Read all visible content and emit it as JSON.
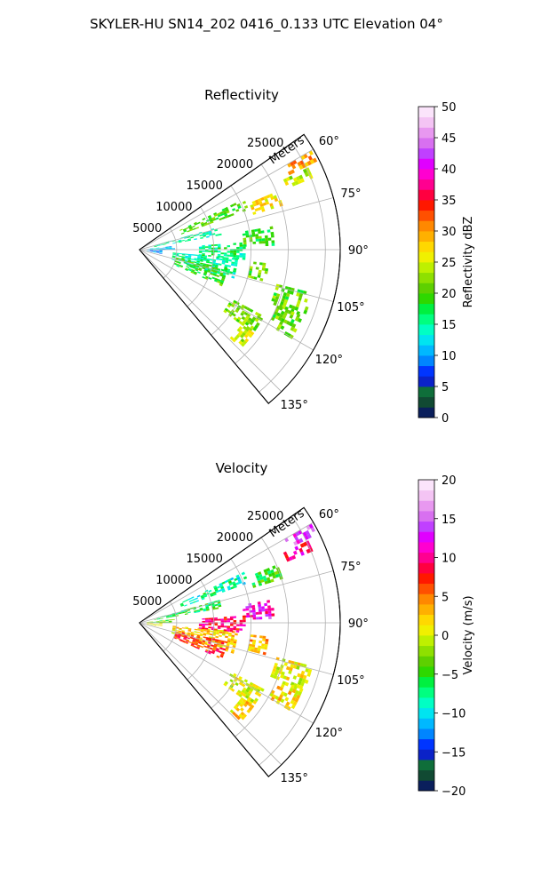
{
  "title": "SKYLER-HU  SN14_202  0416_0.133 UTC Elevation 04°",
  "chart_data": [
    {
      "type": "heatmap",
      "title": "Reflectivity",
      "range_label": "Meters",
      "range_ticks": [
        {
          "value": 5000,
          "label": "5000"
        },
        {
          "value": 10000,
          "label": "10000"
        },
        {
          "value": 15000,
          "label": "15000"
        },
        {
          "value": 20000,
          "label": "20000"
        },
        {
          "value": 25000,
          "label": "25000"
        }
      ],
      "range_max": 27000,
      "azimuth_range": [
        55,
        140
      ],
      "azimuth_ticks": [
        {
          "value": 60,
          "label": "60°"
        },
        {
          "value": 75,
          "label": "75°"
        },
        {
          "value": 90,
          "label": "90°"
        },
        {
          "value": 105,
          "label": "105°"
        },
        {
          "value": 120,
          "label": "120°"
        },
        {
          "value": 135,
          "label": "135°"
        }
      ],
      "colorbar": {
        "label": "Reflectivity dBZ",
        "min": 0,
        "max": 50,
        "ticks": [
          {
            "value": 0,
            "label": "0"
          },
          {
            "value": 5,
            "label": "5"
          },
          {
            "value": 10,
            "label": "10"
          },
          {
            "value": 15,
            "label": "15"
          },
          {
            "value": 20,
            "label": "20"
          },
          {
            "value": 25,
            "label": "25"
          },
          {
            "value": 30,
            "label": "30"
          },
          {
            "value": 35,
            "label": "35"
          },
          {
            "value": 40,
            "label": "40"
          },
          {
            "value": 45,
            "label": "45"
          },
          {
            "value": 50,
            "label": "50"
          }
        ],
        "colors": [
          "#0a1f5c",
          "#114a33",
          "#0f6e3a",
          "#0b22c8",
          "#0035ff",
          "#0085ff",
          "#00b8ff",
          "#00e4f0",
          "#00ffc4",
          "#00ff80",
          "#00f040",
          "#2ed800",
          "#5ed000",
          "#8ee000",
          "#bef000",
          "#f0f000",
          "#ffd800",
          "#ffb000",
          "#ff8800",
          "#ff5000",
          "#ff1800",
          "#ff0040",
          "#ff0090",
          "#ff00d0",
          "#e000ff",
          "#c040ff",
          "#d870f0",
          "#e898f0",
          "#f4c4f4",
          "#fbe4fb"
        ]
      },
      "echo_regions": [
        {
          "az": [
            64,
            70
          ],
          "r": [
            6000,
            15500
          ],
          "value": 20
        },
        {
          "az": [
            67,
            72
          ],
          "r": [
            16000,
            20000
          ],
          "value": 27
        },
        {
          "az": [
            60,
            63
          ],
          "r": [
            22500,
            26500
          ],
          "value": 30
        },
        {
          "az": [
            64,
            67
          ],
          "r": [
            21500,
            25000
          ],
          "value": 24
        },
        {
          "az": [
            74,
            80
          ],
          "r": [
            2000,
            11000
          ],
          "value": 15
        },
        {
          "az": [
            80,
            88
          ],
          "r": [
            14000,
            18000
          ],
          "value": 19
        },
        {
          "az": [
            84,
            90
          ],
          "r": [
            1000,
            4500
          ],
          "value": 12
        },
        {
          "az": [
            90,
            100
          ],
          "r": [
            1000,
            3000
          ],
          "value": 10
        },
        {
          "az": [
            95,
            108
          ],
          "r": [
            4500,
            13000
          ],
          "value": 15
        },
        {
          "az": [
            102,
            114
          ],
          "r": [
            5000,
            12000
          ],
          "value": 19
        },
        {
          "az": [
            86,
            95
          ],
          "r": [
            8000,
            14000
          ],
          "value": 16
        },
        {
          "az": [
            96,
            104
          ],
          "r": [
            15000,
            17500
          ],
          "value": 21
        },
        {
          "az": [
            104,
            112
          ],
          "r": [
            19000,
            24000
          ],
          "value": 21
        },
        {
          "az": [
            112,
            120
          ],
          "r": [
            20000,
            23500
          ],
          "value": 21
        },
        {
          "az": [
            118,
            126
          ],
          "r": [
            14000,
            19000
          ],
          "value": 22
        },
        {
          "az": [
            126,
            134
          ],
          "r": [
            17000,
            19000
          ],
          "value": 24
        }
      ]
    },
    {
      "type": "heatmap",
      "title": "Velocity",
      "range_label": "Meters",
      "range_ticks": [
        {
          "value": 5000,
          "label": "5000"
        },
        {
          "value": 10000,
          "label": "10000"
        },
        {
          "value": 15000,
          "label": "15000"
        },
        {
          "value": 20000,
          "label": "20000"
        },
        {
          "value": 25000,
          "label": "25000"
        }
      ],
      "range_max": 27000,
      "azimuth_range": [
        55,
        140
      ],
      "azimuth_ticks": [
        {
          "value": 60,
          "label": "60°"
        },
        {
          "value": 75,
          "label": "75°"
        },
        {
          "value": 90,
          "label": "90°"
        },
        {
          "value": 105,
          "label": "105°"
        },
        {
          "value": 120,
          "label": "120°"
        },
        {
          "value": 135,
          "label": "135°"
        }
      ],
      "colorbar": {
        "label": "Velocity (m/s)",
        "min": -20,
        "max": 20,
        "ticks": [
          {
            "value": -20,
            "label": "−20"
          },
          {
            "value": -15,
            "label": "−15"
          },
          {
            "value": -10,
            "label": "−10"
          },
          {
            "value": -5,
            "label": "−5"
          },
          {
            "value": 0,
            "label": "0"
          },
          {
            "value": 5,
            "label": "5"
          },
          {
            "value": 10,
            "label": "10"
          },
          {
            "value": 15,
            "label": "15"
          },
          {
            "value": 20,
            "label": "20"
          }
        ],
        "colors": [
          "#0a1f5c",
          "#114a33",
          "#0f6e3a",
          "#0b22c8",
          "#0035ff",
          "#0085ff",
          "#00b8ff",
          "#00e4f0",
          "#00ffc4",
          "#00ff80",
          "#00f040",
          "#2ed800",
          "#5ed000",
          "#8ee000",
          "#bef000",
          "#f0f000",
          "#ffd800",
          "#ffb000",
          "#ff8800",
          "#ff5000",
          "#ff1800",
          "#ff0040",
          "#ff0090",
          "#ff00d0",
          "#e000ff",
          "#c040ff",
          "#d870f0",
          "#e898f0",
          "#f4c4f4",
          "#fbe4fb"
        ]
      },
      "echo_regions": [
        {
          "az": [
            64,
            70
          ],
          "r": [
            6000,
            15500
          ],
          "value": -8
        },
        {
          "az": [
            67,
            72
          ],
          "r": [
            16000,
            20000
          ],
          "value": -5
        },
        {
          "az": [
            60,
            63
          ],
          "r": [
            22500,
            26500
          ],
          "value": 14
        },
        {
          "az": [
            64,
            67
          ],
          "r": [
            21500,
            25000
          ],
          "value": 10
        },
        {
          "az": [
            74,
            80
          ],
          "r": [
            2000,
            11000
          ],
          "value": -6
        },
        {
          "az": [
            80,
            88
          ],
          "r": [
            14000,
            18000
          ],
          "value": 12
        },
        {
          "az": [
            84,
            90
          ],
          "r": [
            1000,
            4500
          ],
          "value": -4
        },
        {
          "az": [
            90,
            100
          ],
          "r": [
            1000,
            3000
          ],
          "value": 1
        },
        {
          "az": [
            95,
            108
          ],
          "r": [
            4500,
            13000
          ],
          "value": 2
        },
        {
          "az": [
            102,
            114
          ],
          "r": [
            5000,
            12000
          ],
          "value": 7
        },
        {
          "az": [
            86,
            95
          ],
          "r": [
            8000,
            14000
          ],
          "value": 9
        },
        {
          "az": [
            96,
            104
          ],
          "r": [
            15000,
            17500
          ],
          "value": 3
        },
        {
          "az": [
            104,
            112
          ],
          "r": [
            19000,
            24000
          ],
          "value": 1
        },
        {
          "az": [
            112,
            120
          ],
          "r": [
            20000,
            23500
          ],
          "value": 2
        },
        {
          "az": [
            118,
            126
          ],
          "r": [
            14000,
            19000
          ],
          "value": 0
        },
        {
          "az": [
            126,
            134
          ],
          "r": [
            17000,
            19000
          ],
          "value": 2
        }
      ]
    }
  ]
}
